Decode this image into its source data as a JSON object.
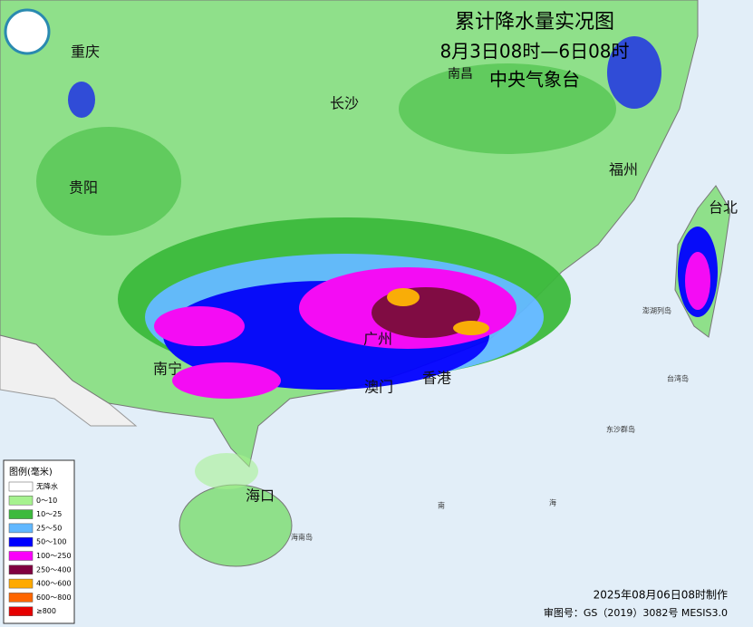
{
  "header": {
    "title": "累计降水量实况图",
    "subtitle": "8月3日08时—6日08时",
    "publisher": "中央气象台"
  },
  "cities": [
    {
      "label": "重庆"
    },
    {
      "label": "长沙"
    },
    {
      "label": "南昌"
    },
    {
      "label": "福州"
    },
    {
      "label": "台北"
    },
    {
      "label": "贵阳"
    },
    {
      "label": "南宁"
    },
    {
      "label": "广州"
    },
    {
      "label": "澳门"
    },
    {
      "label": "香港"
    },
    {
      "label": "海口"
    }
  ],
  "places": [
    {
      "label": "澎湖列岛"
    },
    {
      "label": "台湾岛"
    },
    {
      "label": "东沙群岛"
    },
    {
      "label": "海南岛"
    },
    {
      "label": "南"
    },
    {
      "label": "海"
    }
  ],
  "legend": {
    "title": "图例(毫米)",
    "items": [
      {
        "label": "无降水",
        "color": "#ffffff"
      },
      {
        "label": "0～10",
        "color": "#a6f28f"
      },
      {
        "label": "10～25",
        "color": "#3dba3d"
      },
      {
        "label": "25～50",
        "color": "#61b8ff"
      },
      {
        "label": "50～100",
        "color": "#0000ff"
      },
      {
        "label": "100～250",
        "color": "#fa00fa"
      },
      {
        "label": "250～400",
        "color": "#800040"
      },
      {
        "label": "400～600",
        "color": "#ffaa00"
      },
      {
        "label": "600～800",
        "color": "#ff6600"
      },
      {
        "label": "≥800",
        "color": "#e60000"
      }
    ]
  },
  "footer": {
    "made": "2025年08月06日08时制作",
    "approval": "审图号：GS（2019）3082号 MESIS3.0"
  }
}
